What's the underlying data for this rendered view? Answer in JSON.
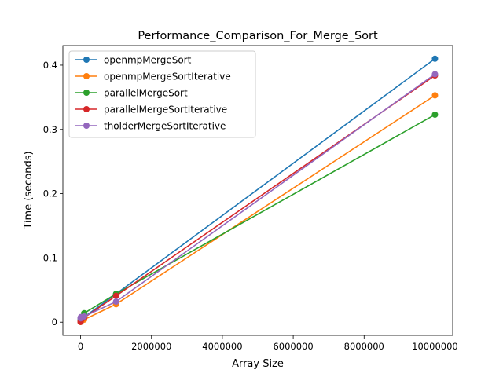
{
  "chart_data": {
    "type": "line",
    "title": "Performance_Comparison_For_Merge_Sort",
    "xlabel": "Array Size",
    "ylabel": "Time (seconds)",
    "xlim": [
      -500000,
      10500000
    ],
    "ylim": [
      -0.0205,
      0.4305
    ],
    "x_ticks": [
      0,
      2000000,
      4000000,
      6000000,
      8000000,
      10000000
    ],
    "y_ticks": [
      0,
      0.1,
      0.2,
      0.3,
      0.4
    ],
    "grid": false,
    "legend_position": "upper-left",
    "x": [
      100,
      1000,
      10000,
      100000,
      1000000,
      10000000
    ],
    "series": [
      {
        "name": "openmpMergeSort",
        "color": "#1f77b4",
        "values": [
          0.0005,
          0.001,
          0.003,
          0.008,
          0.044,
          0.41
        ]
      },
      {
        "name": "openmpMergeSortIterative",
        "color": "#ff7f0e",
        "values": [
          0.0003,
          0.0008,
          0.002,
          0.004,
          0.028,
          0.353
        ]
      },
      {
        "name": "parallelMergeSort",
        "color": "#2ca02c",
        "values": [
          0.002,
          0.004,
          0.006,
          0.014,
          0.044,
          0.323
        ]
      },
      {
        "name": "parallelMergeSortIterative",
        "color": "#d62728",
        "values": [
          0.0005,
          0.001,
          0.003,
          0.007,
          0.041,
          0.384
        ]
      },
      {
        "name": "tholderMergeSortIterative",
        "color": "#9467bd",
        "values": [
          0.006,
          0.007,
          0.008,
          0.009,
          0.032,
          0.386
        ]
      }
    ]
  }
}
